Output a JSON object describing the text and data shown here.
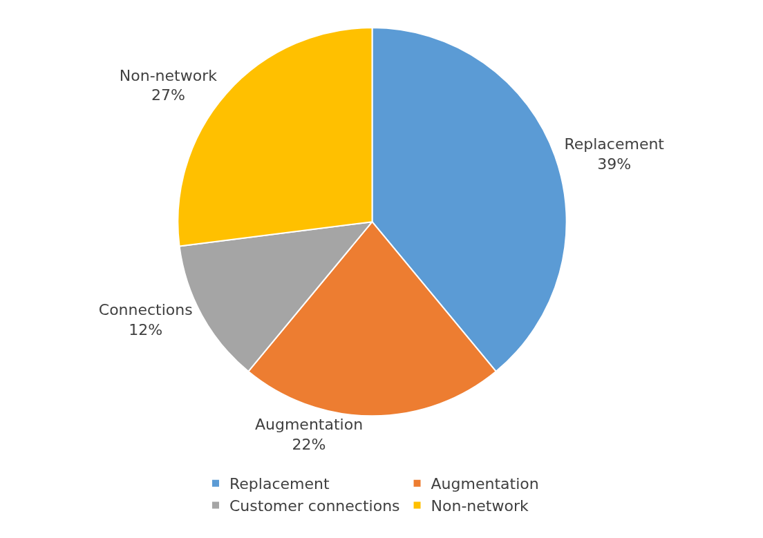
{
  "chart_data": {
    "type": "pie",
    "categories": [
      "Replacement",
      "Augmentation",
      "Customer connections",
      "Non-network"
    ],
    "values": [
      39,
      22,
      12,
      27
    ],
    "colors": [
      "#5b9bd5",
      "#ed7d31",
      "#a5a5a5",
      "#ffc000"
    ],
    "value_labels": [
      "Replacement\n39%",
      "Augmentation\n22%",
      "Connections\n12%",
      "Non-network\n27%"
    ],
    "legend": "bottom"
  }
}
